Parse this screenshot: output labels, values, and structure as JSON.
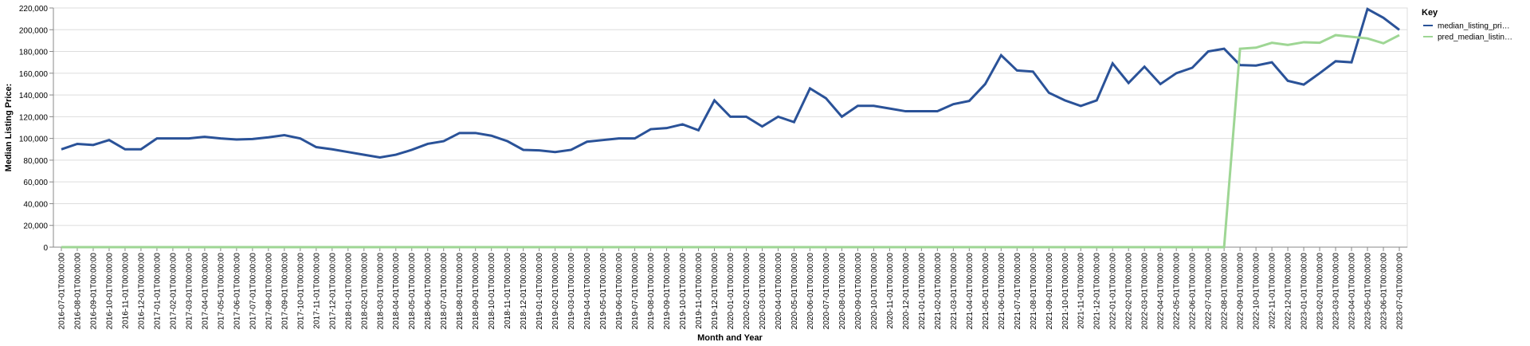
{
  "chart_data": {
    "type": "line",
    "x_label": "Month and Year",
    "y_label": "Median Listing Price:",
    "legend_title": "Key",
    "legend_position": "right",
    "grid": true,
    "categories": [
      "2016-07-01T00:00:00",
      "2016-08-01T00:00:00",
      "2016-09-01T00:00:00",
      "2016-10-01T00:00:00",
      "2016-11-01T00:00:00",
      "2016-12-01T00:00:00",
      "2017-01-01T00:00:00",
      "2017-02-01T00:00:00",
      "2017-03-01T00:00:00",
      "2017-04-01T00:00:00",
      "2017-05-01T00:00:00",
      "2017-06-01T00:00:00",
      "2017-07-01T00:00:00",
      "2017-08-01T00:00:00",
      "2017-09-01T00:00:00",
      "2017-10-01T00:00:00",
      "2017-11-01T00:00:00",
      "2017-12-01T00:00:00",
      "2018-01-01T00:00:00",
      "2018-02-01T00:00:00",
      "2018-03-01T00:00:00",
      "2018-04-01T00:00:00",
      "2018-05-01T00:00:00",
      "2018-06-01T00:00:00",
      "2018-07-01T00:00:00",
      "2018-08-01T00:00:00",
      "2018-09-01T00:00:00",
      "2018-10-01T00:00:00",
      "2018-11-01T00:00:00",
      "2018-12-01T00:00:00",
      "2019-01-01T00:00:00",
      "2019-02-01T00:00:00",
      "2019-03-01T00:00:00",
      "2019-04-01T00:00:00",
      "2019-05-01T00:00:00",
      "2019-06-01T00:00:00",
      "2019-07-01T00:00:00",
      "2019-08-01T00:00:00",
      "2019-09-01T00:00:00",
      "2019-10-01T00:00:00",
      "2019-11-01T00:00:00",
      "2019-12-01T00:00:00",
      "2020-01-01T00:00:00",
      "2020-02-01T00:00:00",
      "2020-03-01T00:00:00",
      "2020-04-01T00:00:00",
      "2020-05-01T00:00:00",
      "2020-06-01T00:00:00",
      "2020-07-01T00:00:00",
      "2020-08-01T00:00:00",
      "2020-09-01T00:00:00",
      "2020-10-01T00:00:00",
      "2020-11-01T00:00:00",
      "2020-12-01T00:00:00",
      "2021-01-01T00:00:00",
      "2021-02-01T00:00:00",
      "2021-03-01T00:00:00",
      "2021-04-01T00:00:00",
      "2021-05-01T00:00:00",
      "2021-06-01T00:00:00",
      "2021-07-01T00:00:00",
      "2021-08-01T00:00:00",
      "2021-09-01T00:00:00",
      "2021-10-01T00:00:00",
      "2021-11-01T00:00:00",
      "2021-12-01T00:00:00",
      "2022-01-01T00:00:00",
      "2022-02-01T00:00:00",
      "2022-03-01T00:00:00",
      "2022-04-01T00:00:00",
      "2022-05-01T00:00:00",
      "2022-06-01T00:00:00",
      "2022-07-01T00:00:00",
      "2022-08-01T00:00:00",
      "2022-09-01T00:00:00",
      "2022-10-01T00:00:00",
      "2022-11-01T00:00:00",
      "2022-12-01T00:00:00",
      "2023-01-01T00:00:00",
      "2023-02-01T00:00:00",
      "2023-03-01T00:00:00",
      "2023-04-01T00:00:00",
      "2023-05-01T00:00:00",
      "2023-06-01T00:00:00",
      "2023-07-01T00:00:00"
    ],
    "series": [
      {
        "name": "median_listing_pri…",
        "color": "#2a5298",
        "values": [
          90000,
          95000,
          94000,
          98500,
          90000,
          90000,
          100000,
          100000,
          100000,
          101500,
          100000,
          99000,
          99500,
          101000,
          103000,
          100000,
          92000,
          90000,
          87500,
          85000,
          82500,
          85000,
          89500,
          95000,
          97500,
          105000,
          105000,
          102500,
          97500,
          89500,
          89000,
          87500,
          89500,
          97000,
          98500,
          100000,
          100000,
          108500,
          109500,
          113000,
          107500,
          135000,
          120000,
          120000,
          111000,
          120000,
          115000,
          146000,
          137000,
          120000,
          130000,
          130000,
          127500,
          125000,
          125000,
          125000,
          131500,
          134500,
          150000,
          176500,
          162500,
          161500,
          142000,
          135000,
          129900,
          135000,
          169000,
          151000,
          166000,
          150000,
          160000,
          165000,
          180000,
          182500,
          167500,
          167000,
          170000,
          153000,
          149500,
          160000,
          171000,
          170000,
          219000,
          211000,
          199900
        ]
      },
      {
        "name": "pred_median_listin…",
        "color": "#9ed694",
        "values": [
          0,
          0,
          0,
          0,
          0,
          0,
          0,
          0,
          0,
          0,
          0,
          0,
          0,
          0,
          0,
          0,
          0,
          0,
          0,
          0,
          0,
          0,
          0,
          0,
          0,
          0,
          0,
          0,
          0,
          0,
          0,
          0,
          0,
          0,
          0,
          0,
          0,
          0,
          0,
          0,
          0,
          0,
          0,
          0,
          0,
          0,
          0,
          0,
          0,
          0,
          0,
          0,
          0,
          0,
          0,
          0,
          0,
          0,
          0,
          0,
          0,
          0,
          0,
          0,
          0,
          0,
          0,
          0,
          0,
          0,
          0,
          0,
          0,
          0,
          182500,
          183500,
          188000,
          186000,
          188500,
          188000,
          195000,
          193500,
          192000,
          187500,
          195000
        ]
      }
    ],
    "ylim": [
      0,
      220000
    ],
    "yticks": [
      0,
      {
        "value": 20000,
        "label": "20,000"
      },
      {
        "value": 40000,
        "label": "40,000"
      },
      {
        "value": 60000,
        "label": "60,000"
      },
      {
        "value": 80000,
        "label": "80,000"
      },
      {
        "value": 100000,
        "label": "100,000"
      },
      {
        "value": 120000,
        "label": "120,000"
      },
      {
        "value": 140000,
        "label": "140,000"
      },
      {
        "value": 160000,
        "label": "160,000"
      },
      {
        "value": 180000,
        "label": "180,000"
      },
      {
        "value": 200000,
        "label": "200,000"
      },
      {
        "value": 220000,
        "label": "220,000"
      }
    ]
  }
}
